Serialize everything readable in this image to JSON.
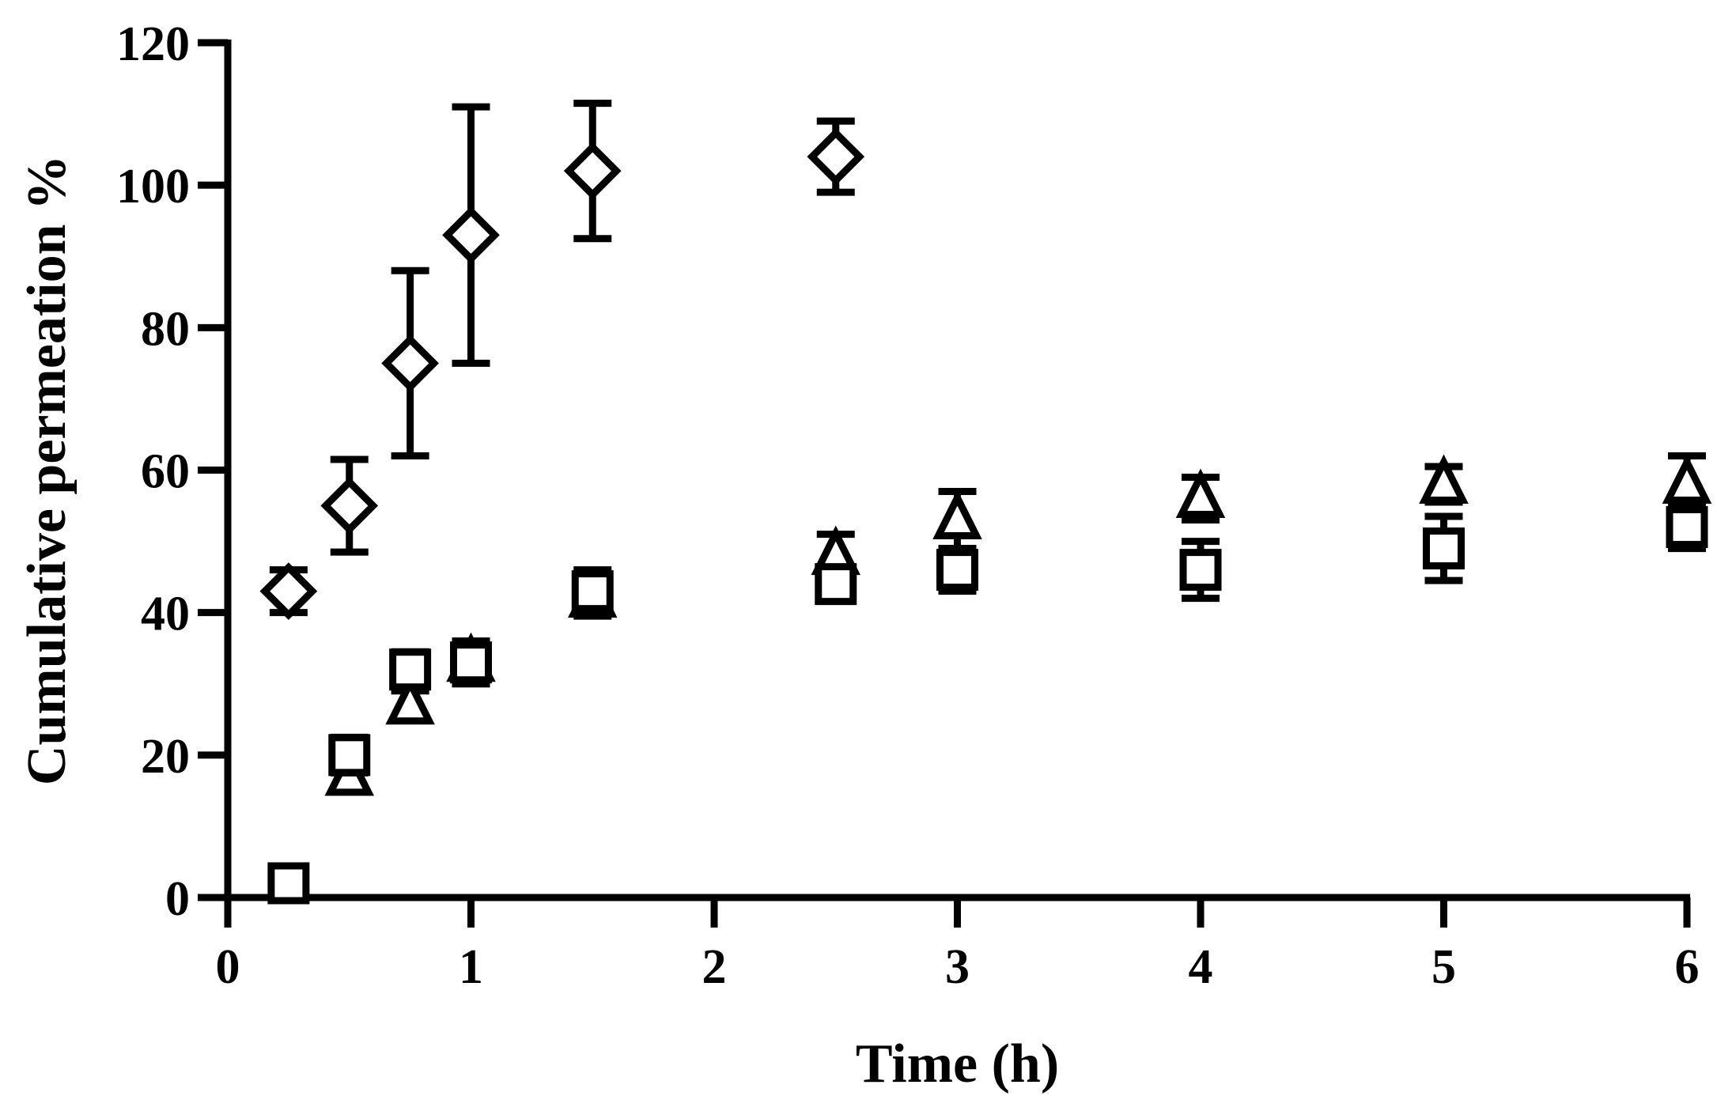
{
  "chart_data": {
    "type": "scatter",
    "title": "",
    "xlabel": "Time (h)",
    "ylabel": "Cumulative permeation %",
    "xlim": [
      0,
      6
    ],
    "ylim": [
      0,
      120
    ],
    "xticks": [
      0,
      1,
      2,
      3,
      4,
      5,
      6
    ],
    "yticks": [
      0,
      20,
      40,
      60,
      80,
      100,
      120
    ],
    "grid": false,
    "legend": "none",
    "color": "#000000",
    "series": [
      {
        "marker": "diamond",
        "points": [
          {
            "x": 0.25,
            "y": 43,
            "err": 3
          },
          {
            "x": 0.5,
            "y": 55,
            "err": 6.5
          },
          {
            "x": 0.75,
            "y": 75,
            "err": 13
          },
          {
            "x": 1,
            "y": 93,
            "err": 18
          },
          {
            "x": 1.5,
            "y": 102,
            "err": 9.5
          },
          {
            "x": 2.5,
            "y": 104,
            "err": 5
          }
        ]
      },
      {
        "marker": "triangle",
        "points": [
          {
            "x": 0.5,
            "y": 17,
            "err": 2
          },
          {
            "x": 0.75,
            "y": 27,
            "err": 2
          },
          {
            "x": 1,
            "y": 33,
            "err": 3
          },
          {
            "x": 1.5,
            "y": 42,
            "err": 2.5
          },
          {
            "x": 2.5,
            "y": 48,
            "err": 3
          },
          {
            "x": 3,
            "y": 53,
            "err": 4
          },
          {
            "x": 4,
            "y": 56,
            "err": 3
          },
          {
            "x": 5,
            "y": 58,
            "err": 2.5
          },
          {
            "x": 6,
            "y": 58,
            "err": 4
          }
        ]
      },
      {
        "marker": "square",
        "points": [
          {
            "x": 0.25,
            "y": 2,
            "err": 1
          },
          {
            "x": 0.5,
            "y": 20,
            "err": 2.5
          },
          {
            "x": 0.75,
            "y": 32,
            "err": 2.5
          },
          {
            "x": 1,
            "y": 33,
            "err": 3
          },
          {
            "x": 1.5,
            "y": 43,
            "err": 3
          },
          {
            "x": 2.5,
            "y": 44,
            "err": 2
          },
          {
            "x": 3,
            "y": 46,
            "err": 3
          },
          {
            "x": 4,
            "y": 46,
            "err": 4
          },
          {
            "x": 5,
            "y": 49,
            "err": 4.5
          },
          {
            "x": 6,
            "y": 52,
            "err": 3
          }
        ]
      }
    ]
  }
}
